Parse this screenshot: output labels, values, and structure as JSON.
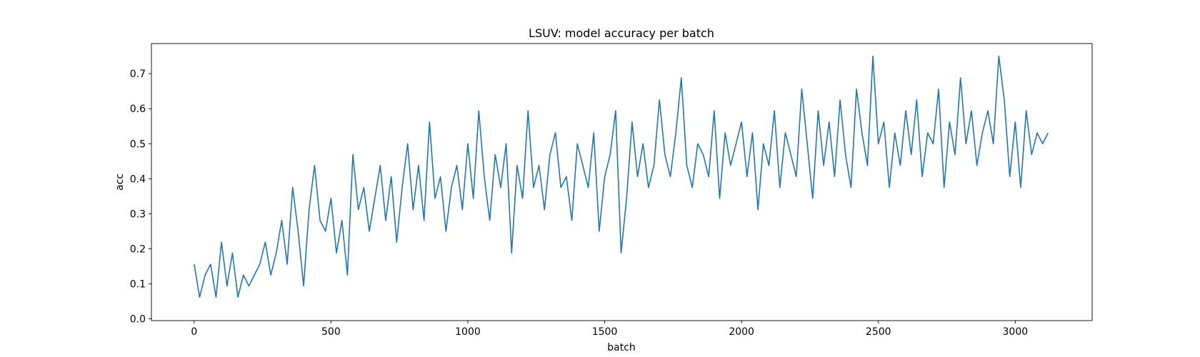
{
  "chart_data": {
    "type": "line",
    "title": "LSUV: model accuracy per batch",
    "x_label": "batch",
    "y_label": "acc",
    "color": "#1f77b4",
    "x": [
      0,
      20,
      40,
      60,
      80,
      100,
      120,
      140,
      160,
      180,
      200,
      220,
      240,
      260,
      280,
      300,
      320,
      340,
      360,
      380,
      400,
      420,
      440,
      460,
      480,
      500,
      520,
      540,
      560,
      580,
      600,
      620,
      640,
      660,
      680,
      700,
      720,
      740,
      760,
      780,
      800,
      820,
      840,
      860,
      880,
      900,
      920,
      940,
      960,
      980,
      1000,
      1020,
      1040,
      1060,
      1080,
      1100,
      1120,
      1140,
      1160,
      1180,
      1200,
      1220,
      1240,
      1260,
      1280,
      1300,
      1320,
      1340,
      1360,
      1380,
      1400,
      1420,
      1440,
      1460,
      1480,
      1500,
      1520,
      1540,
      1560,
      1580,
      1600,
      1620,
      1640,
      1660,
      1680,
      1700,
      1720,
      1740,
      1760,
      1780,
      1800,
      1820,
      1840,
      1860,
      1880,
      1900,
      1920,
      1940,
      1960,
      1980,
      2000,
      2020,
      2040,
      2060,
      2080,
      2100,
      2120,
      2140,
      2160,
      2180,
      2200,
      2220,
      2240,
      2260,
      2280,
      2300,
      2320,
      2340,
      2360,
      2380,
      2400,
      2420,
      2440,
      2460,
      2480,
      2500,
      2520,
      2540,
      2560,
      2580,
      2600,
      2620,
      2640,
      2660,
      2680,
      2700,
      2720,
      2740,
      2760,
      2780,
      2800,
      2820,
      2840,
      2860,
      2880,
      2900,
      2920,
      2940,
      2960,
      2980,
      3000,
      3020,
      3040,
      3060,
      3080,
      3100,
      3120
    ],
    "values": [
      0.156,
      0.062,
      0.125,
      0.156,
      0.062,
      0.219,
      0.094,
      0.188,
      0.062,
      0.125,
      0.094,
      0.125,
      0.156,
      0.219,
      0.125,
      0.188,
      0.281,
      0.156,
      0.375,
      0.25,
      0.094,
      0.312,
      0.438,
      0.281,
      0.25,
      0.344,
      0.188,
      0.281,
      0.125,
      0.469,
      0.312,
      0.375,
      0.25,
      0.344,
      0.438,
      0.281,
      0.406,
      0.219,
      0.375,
      0.5,
      0.312,
      0.438,
      0.281,
      0.562,
      0.344,
      0.406,
      0.25,
      0.375,
      0.438,
      0.312,
      0.5,
      0.344,
      0.594,
      0.406,
      0.281,
      0.469,
      0.375,
      0.5,
      0.188,
      0.438,
      0.344,
      0.594,
      0.375,
      0.438,
      0.312,
      0.469,
      0.531,
      0.375,
      0.406,
      0.281,
      0.5,
      0.438,
      0.375,
      0.531,
      0.25,
      0.406,
      0.469,
      0.594,
      0.188,
      0.344,
      0.562,
      0.406,
      0.5,
      0.375,
      0.438,
      0.625,
      0.469,
      0.406,
      0.531,
      0.688,
      0.438,
      0.375,
      0.5,
      0.469,
      0.406,
      0.594,
      0.344,
      0.531,
      0.438,
      0.5,
      0.562,
      0.406,
      0.531,
      0.312,
      0.5,
      0.438,
      0.594,
      0.375,
      0.531,
      0.469,
      0.406,
      0.656,
      0.5,
      0.344,
      0.594,
      0.438,
      0.562,
      0.406,
      0.625,
      0.469,
      0.375,
      0.656,
      0.531,
      0.438,
      0.75,
      0.5,
      0.562,
      0.375,
      0.531,
      0.438,
      0.594,
      0.469,
      0.625,
      0.406,
      0.531,
      0.5,
      0.656,
      0.375,
      0.562,
      0.469,
      0.688,
      0.5,
      0.594,
      0.438,
      0.531,
      0.594,
      0.5,
      0.75,
      0.625,
      0.406,
      0.562,
      0.375,
      0.594,
      0.469,
      0.531,
      0.5,
      0.531
    ],
    "xlim": [
      -156,
      3281
    ],
    "xticks": [
      0,
      500,
      1000,
      1500,
      2000,
      2500,
      3000
    ],
    "ylim": [
      -0.005,
      0.786
    ],
    "yticks": [
      {
        "value": 0,
        "label": "0.0"
      },
      0.1,
      0.2,
      0.3,
      0.4,
      0.5,
      0.6,
      0.7
    ]
  }
}
